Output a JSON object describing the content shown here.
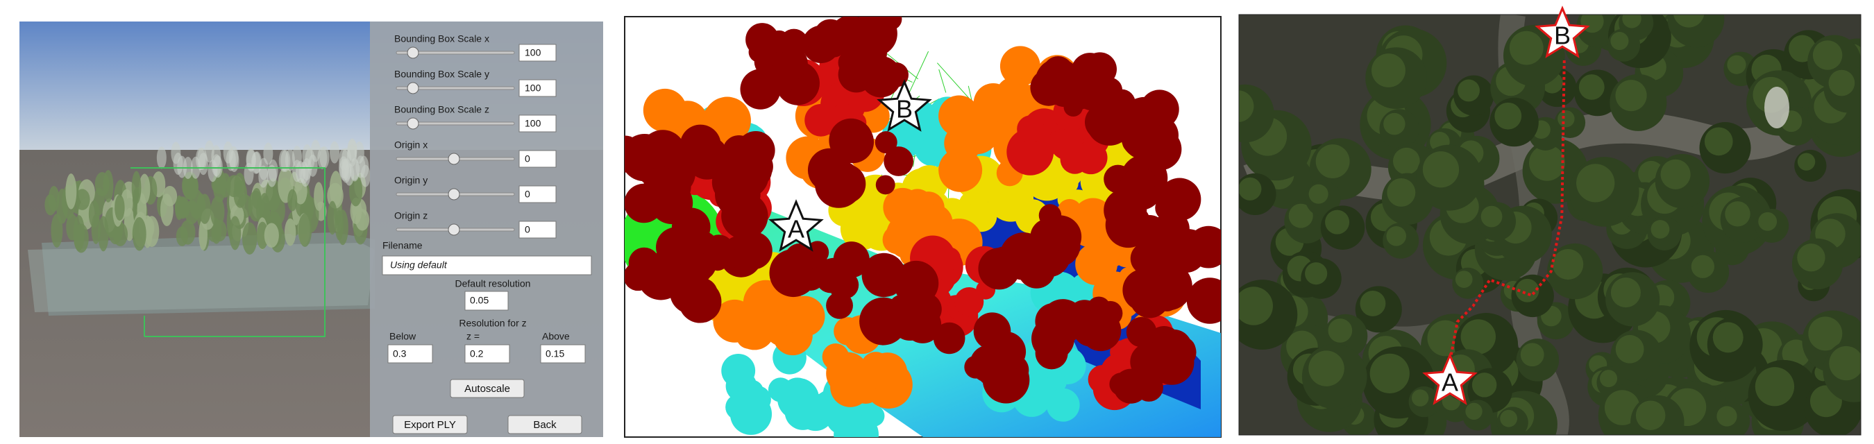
{
  "ui_panel": {
    "sliders": [
      {
        "label": "Bounding Box Scale x",
        "value": 100
      },
      {
        "label": "Bounding Box Scale y",
        "value": 100
      },
      {
        "label": "Bounding Box Scale z",
        "value": 100
      },
      {
        "label": "Origin x",
        "value": 0
      },
      {
        "label": "Origin y",
        "value": 0
      },
      {
        "label": "Origin z",
        "value": 0
      }
    ],
    "filename": {
      "label": "Filename",
      "placeholder": "Using default"
    },
    "default_resolution": {
      "label": "Default resolution",
      "value": 0.05
    },
    "resolution_z": {
      "label": "Resolution for z",
      "fields": [
        {
          "label": "Below",
          "value": 0.3
        },
        {
          "label": "z =",
          "value": 0.2
        },
        {
          "label": "Above",
          "value": 0.15
        }
      ]
    },
    "buttons": [
      "Autoscale",
      "Export PLY",
      "Back"
    ]
  },
  "point_cloud": {
    "markers": [
      "A",
      "B"
    ]
  },
  "aerial_view": {
    "markers": [
      "A",
      "B"
    ]
  }
}
